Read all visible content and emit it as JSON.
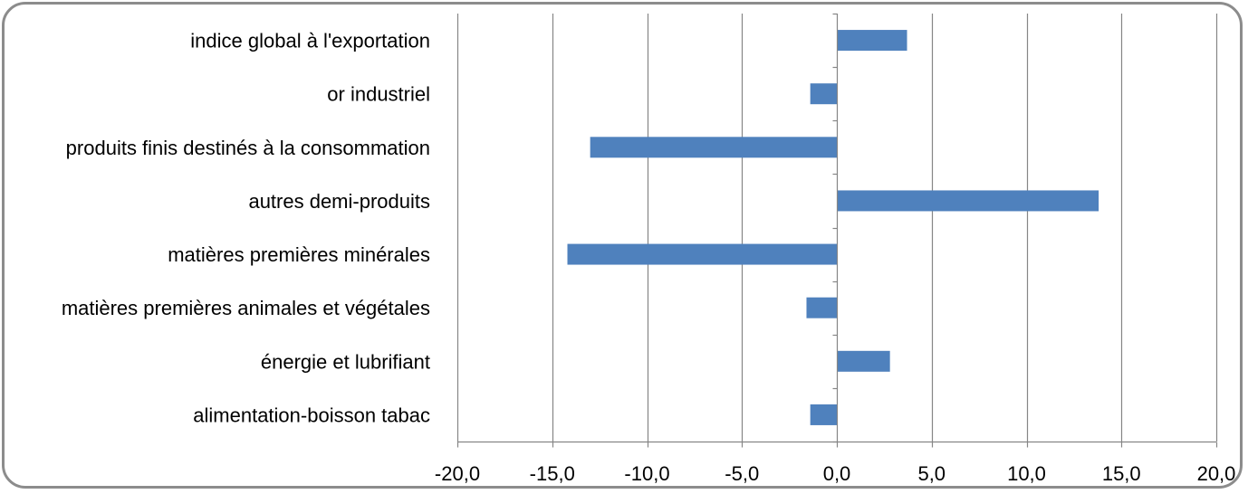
{
  "chart_data": {
    "type": "bar",
    "orientation": "horizontal",
    "categories": [
      "indice global à l'exportation",
      "or industriel",
      "produits finis destinés à la consommation",
      "autres demi-produits",
      "matières premières minérales",
      "matières premières animales et végétales",
      "énergie et lubrifiant",
      "alimentation-boisson tabac"
    ],
    "values": [
      3.7,
      -1.4,
      -13.0,
      13.8,
      -14.2,
      -1.6,
      2.8,
      -1.4
    ],
    "xlim": [
      -20,
      20
    ],
    "xticks": [
      -20,
      -15,
      -10,
      -5,
      0,
      5,
      10,
      15,
      20
    ],
    "xtick_labels": [
      "-20,0",
      "-15,0",
      "-10,0",
      "-5,0",
      "0,0",
      "5,0",
      "10,0",
      "15,0",
      "20,0"
    ],
    "grid": "vertical",
    "bar_color": "#4f81bd",
    "grid_color": "#868686"
  }
}
